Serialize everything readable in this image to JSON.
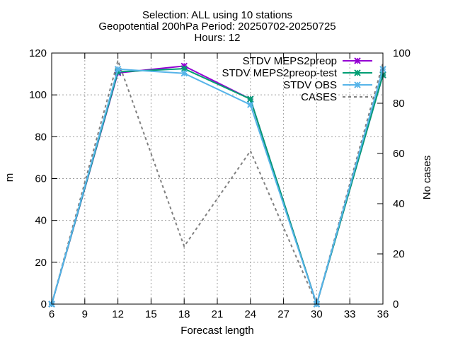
{
  "chart_data": {
    "type": "line",
    "title_lines": [
      "Selection: ALL using    10 stations",
      "Geopotential 200hPa   Period: 20250702-20250725",
      "Hours: 12"
    ],
    "xlabel": "Forecast length",
    "ylabel": "m",
    "y2label": "No cases",
    "xlim": [
      6,
      36
    ],
    "xticks": [
      6,
      9,
      12,
      15,
      18,
      21,
      24,
      27,
      30,
      33,
      36
    ],
    "ylim": [
      0,
      120
    ],
    "yticks": [
      0,
      20,
      40,
      60,
      80,
      100,
      120
    ],
    "y2lim": [
      0,
      100
    ],
    "y2ticks": [
      0,
      20,
      40,
      60,
      80,
      100
    ],
    "grid": true,
    "legend_position": "top-right",
    "x": [
      6,
      12,
      18,
      24,
      30,
      36
    ],
    "series": [
      {
        "name": "STDV MEPS2preop",
        "axis": "y",
        "color": "#9400d3",
        "style": "solid-x",
        "values": [
          0,
          110.5,
          113.8,
          98,
          0,
          109.5
        ]
      },
      {
        "name": "STDV MEPS2preop-test",
        "axis": "y",
        "color": "#009e73",
        "style": "solid-x",
        "values": [
          0,
          111,
          112.5,
          98,
          0,
          109.5
        ]
      },
      {
        "name": "STDV OBS",
        "axis": "y",
        "color": "#56b4e9",
        "style": "solid-x",
        "values": [
          0,
          112.3,
          110.3,
          95.3,
          0,
          112.3
        ]
      },
      {
        "name": "CASES",
        "axis": "y2",
        "color": "#808080",
        "style": "dashed",
        "values": [
          0,
          97,
          23,
          61,
          0,
          96
        ]
      }
    ]
  }
}
